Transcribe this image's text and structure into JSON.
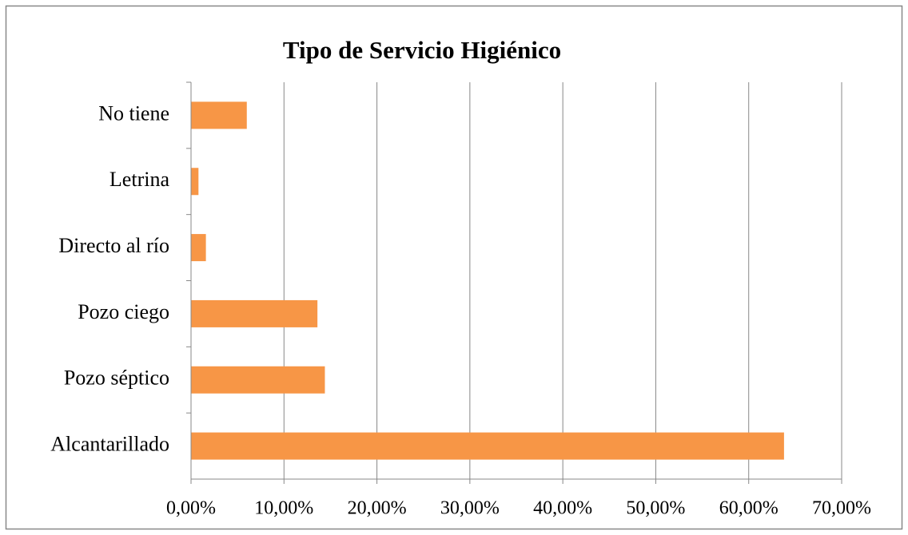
{
  "chart_data": {
    "type": "bar",
    "orientation": "horizontal",
    "title": "Tipo de Servicio  Higiénico",
    "categories": [
      "No tiene",
      "Letrina",
      "Directo al río",
      "Pozo ciego",
      "Pozo séptico",
      "Alcantarillado"
    ],
    "values": [
      6.0,
      0.8,
      1.6,
      13.6,
      14.4,
      63.8
    ],
    "color": "#f79646",
    "xlim": [
      0,
      70
    ],
    "xticks": [
      {
        "value": 0,
        "label": "0,00%"
      },
      {
        "value": 10,
        "label": "10,00%"
      },
      {
        "value": 20,
        "label": "20,00%"
      },
      {
        "value": 30,
        "label": "30,00%"
      },
      {
        "value": 40,
        "label": "40,00%"
      },
      {
        "value": 50,
        "label": "50,00%"
      },
      {
        "value": 60,
        "label": "60,00%"
      },
      {
        "value": 70,
        "label": "70,00%"
      }
    ],
    "grid": true
  }
}
